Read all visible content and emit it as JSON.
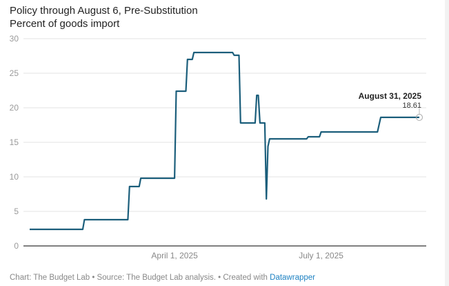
{
  "chart_data": {
    "type": "line",
    "title": "Policy through August 6, Pre-Substitution",
    "subtitle": "Percent of goods import",
    "xlabel": "",
    "ylabel": "",
    "xlim": [
      "2025-01-01",
      "2025-08-31"
    ],
    "ylim": [
      0,
      30
    ],
    "y_ticks": [
      0,
      5,
      10,
      15,
      20,
      25,
      30
    ],
    "x_ticks": [
      {
        "date": "2025-04-01",
        "label": "April 1, 2025"
      },
      {
        "date": "2025-07-01",
        "label": "July 1, 2025"
      }
    ],
    "grid": true,
    "line_color": "#1b5e7b",
    "series": [
      {
        "points": [
          [
            "2025-01-01",
            2.4
          ],
          [
            "2025-02-03",
            2.4
          ],
          [
            "2025-02-04",
            3.8
          ],
          [
            "2025-03-03",
            3.8
          ],
          [
            "2025-03-04",
            8.6
          ],
          [
            "2025-03-10",
            8.6
          ],
          [
            "2025-03-11",
            9.8
          ],
          [
            "2025-04-01",
            9.8
          ],
          [
            "2025-04-02",
            22.4
          ],
          [
            "2025-04-08",
            22.4
          ],
          [
            "2025-04-09",
            27.0
          ],
          [
            "2025-04-12",
            27.0
          ],
          [
            "2025-04-13",
            28.0
          ],
          [
            "2025-05-07",
            28.0
          ],
          [
            "2025-05-08",
            27.6
          ],
          [
            "2025-05-11",
            27.6
          ],
          [
            "2025-05-12",
            17.8
          ],
          [
            "2025-05-21",
            17.8
          ],
          [
            "2025-05-22",
            21.8
          ],
          [
            "2025-05-23",
            21.8
          ],
          [
            "2025-05-24",
            17.8
          ],
          [
            "2025-05-27",
            17.8
          ],
          [
            "2025-05-28",
            6.8
          ],
          [
            "2025-05-29",
            14.4
          ],
          [
            "2025-05-30",
            15.5
          ],
          [
            "2025-06-22",
            15.5
          ],
          [
            "2025-06-23",
            15.8
          ],
          [
            "2025-06-30",
            15.8
          ],
          [
            "2025-07-01",
            16.5
          ],
          [
            "2025-08-05",
            16.5
          ],
          [
            "2025-08-07",
            18.61
          ],
          [
            "2025-08-31",
            18.61
          ]
        ]
      }
    ],
    "annotation": {
      "date": "2025-08-31",
      "label": "August 31, 2025",
      "value": "18.61"
    }
  },
  "footer": {
    "text": "Chart: The Budget Lab • Source: The Budget Lab analysis. • Created with ",
    "link": "Datawrapper"
  }
}
